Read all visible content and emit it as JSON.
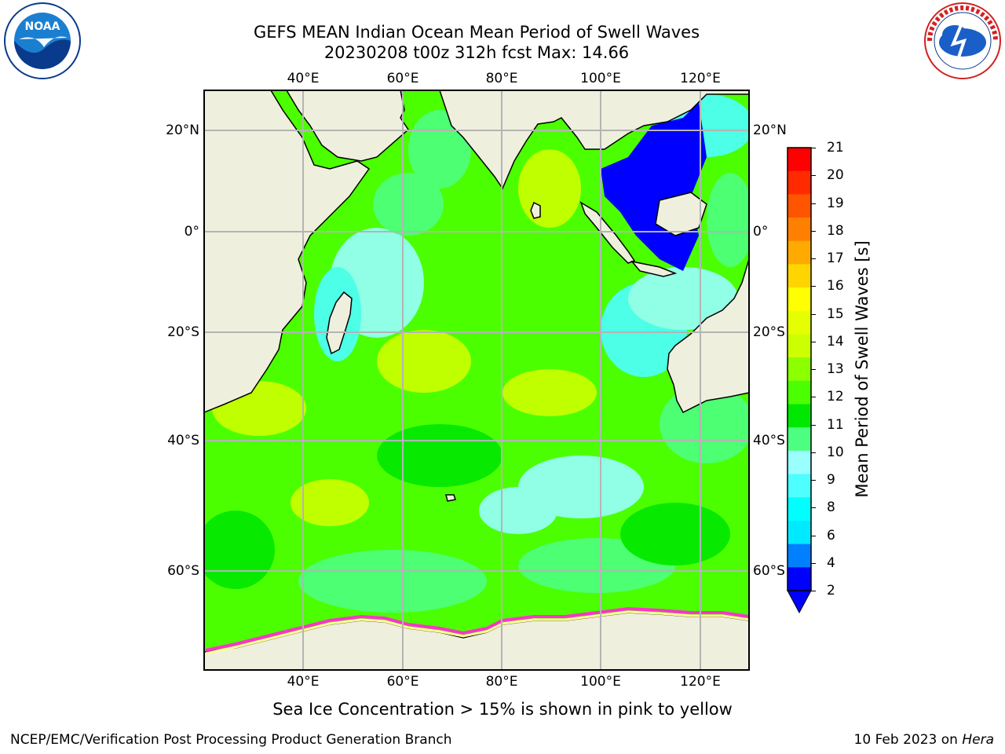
{
  "title": {
    "line1": "GEFS MEAN Indian Ocean Mean Period of Swell Waves",
    "line2": "20230208 t00z 312h fcst   Max: 14.66"
  },
  "logos": {
    "left": {
      "icon": "noaa-logo",
      "text": "NOAA",
      "ring_text": "NATIONAL OCEANIC AND ATMOSPHERIC ADMINISTRATION · U.S. DEPARTMENT OF COMMERCE"
    },
    "right": {
      "icon": "nws-logo",
      "ring_text": "NATIONAL WEATHER SERVICE"
    }
  },
  "map": {
    "lon_ticks": [
      "40°E",
      "60°E",
      "80°E",
      "100°E",
      "120°E"
    ],
    "lat_ticks_left": [
      "20°N",
      "0°",
      "20°S",
      "40°S",
      "60°S"
    ],
    "lat_ticks_right": [
      "20°N",
      "0°",
      "20°S",
      "40°S",
      "60°S"
    ],
    "land_color": "#efefde",
    "grid_color": "#b4b4b4"
  },
  "colorbar": {
    "label": "Mean Period of Swell Waves [s]",
    "ticks": [
      "21",
      "20",
      "19",
      "18",
      "17",
      "16",
      "15",
      "14",
      "13",
      "12",
      "11",
      "10",
      "9",
      "8",
      "6",
      "4",
      "2"
    ],
    "colors": [
      "#ff0000",
      "#ff2a00",
      "#ff5500",
      "#ff8000",
      "#ffaa00",
      "#ffd500",
      "#ffff00",
      "#e6ff00",
      "#ccff00",
      "#8cff00",
      "#4cff00",
      "#00e800",
      "#4dff80",
      "#99ffff",
      "#4dffff",
      "#00ffff",
      "#00eaff",
      "#0080ff",
      "#0000ff"
    ],
    "extend_color": "#0000ff"
  },
  "subtitle": "Sea Ice Concentration > 15% is shown in pink to yellow",
  "footer": {
    "left": "NCEP/EMC/Verification Post Processing Product Generation Branch",
    "date": "10 Feb 2023 on ",
    "host": "Hera"
  }
}
